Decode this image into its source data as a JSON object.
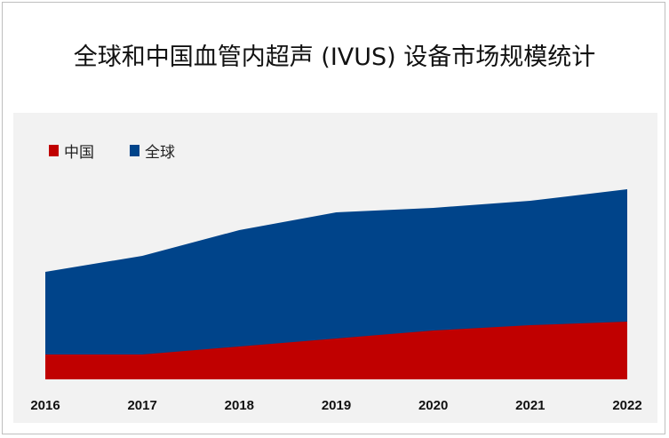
{
  "title": "全球和中国血管内超声 (IVUS) 设备市场规模统计",
  "chart_data": {
    "type": "area",
    "title": "全球和中国血管内超声 (IVUS) 设备市场规模统计",
    "categories": [
      "2016",
      "2017",
      "2018",
      "2019",
      "2020",
      "2021",
      "2022"
    ],
    "series": [
      {
        "name": "全球",
        "color": "#00448a",
        "values": [
          121,
          139,
          168,
          188,
          193,
          201,
          214
        ]
      },
      {
        "name": "中国",
        "color": "#c00000",
        "values": [
          28,
          28,
          37,
          46,
          55,
          61,
          65
        ]
      }
    ],
    "ylim": [
      0,
      250
    ],
    "grid": false,
    "legend": "top-left",
    "xlabel": "",
    "ylabel": ""
  }
}
